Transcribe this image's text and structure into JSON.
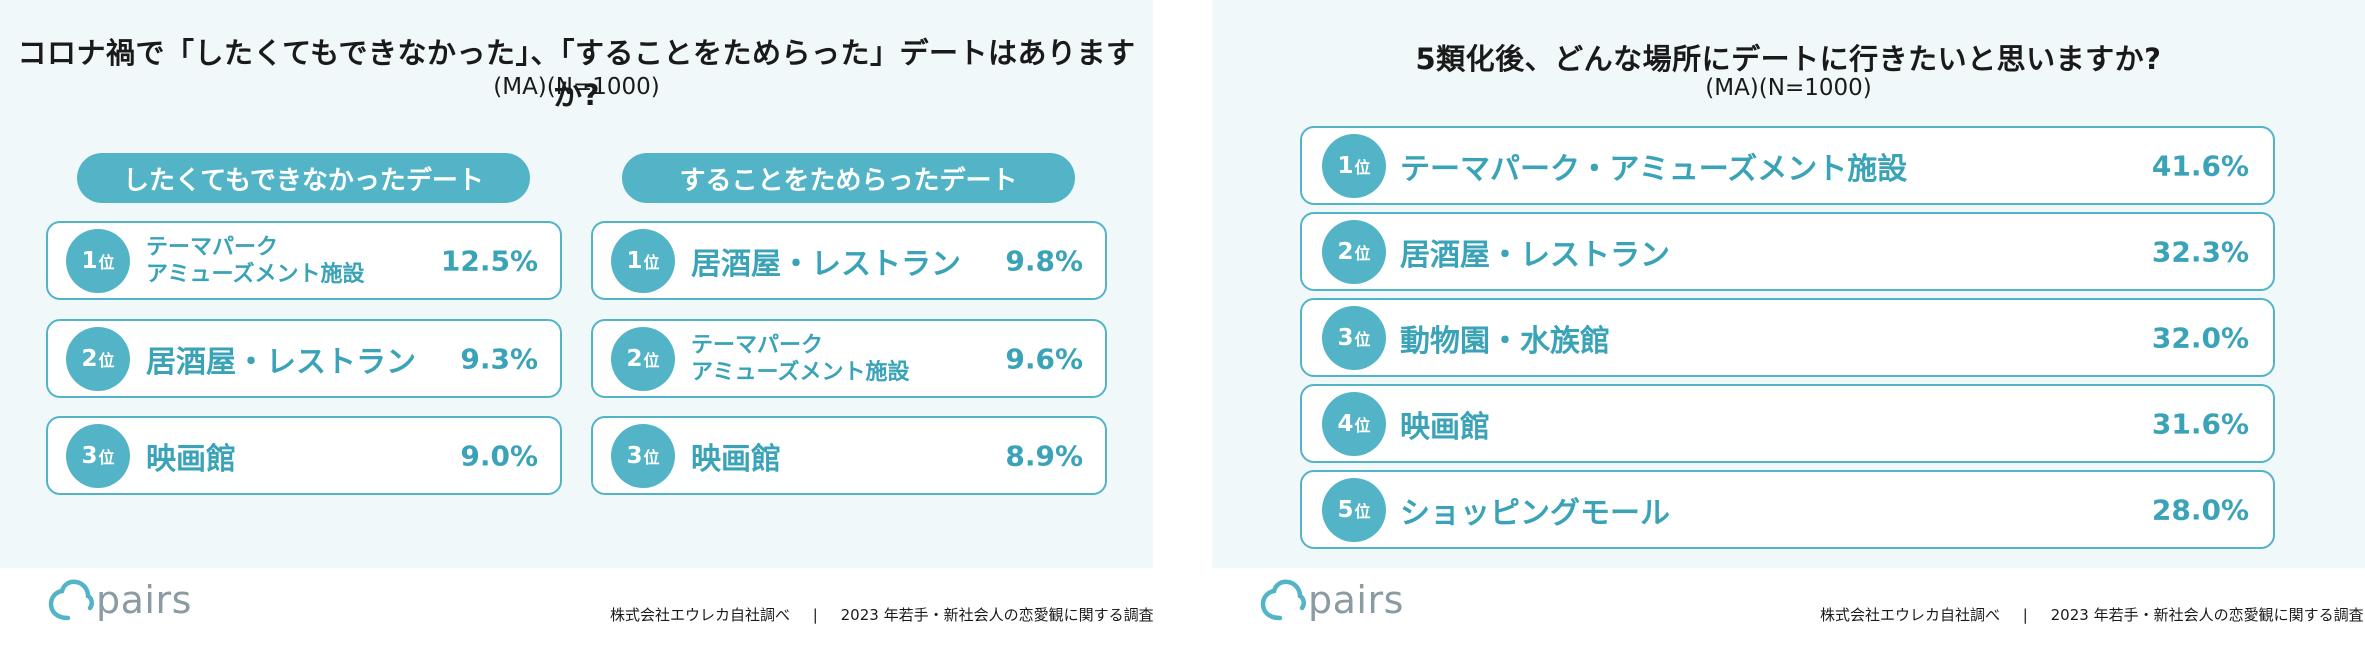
{
  "brand": {
    "logo_text": "pairs",
    "logo_color": "#52b4c6",
    "footer_left": "株式会社エウレカ自社調べ",
    "footer_sep": "|",
    "footer_right": "2023 年若手・新社会人の恋愛観に関する調査"
  },
  "colors": {
    "accent": "#52b4c6",
    "value_text": "#3aa3b7",
    "panel_bg": "#f1f8fa"
  },
  "chart_data": [
    {
      "type": "table",
      "title": "コロナ禍で「したくてもできなかった」、「することをためらった」デートはありますか?",
      "subtitle": "(MA)(N=1000)",
      "groups": [
        {
          "header": "したくてもできなかったデート",
          "rows": [
            {
              "rank_num": "1",
              "rank_unit": "位",
              "lines": [
                "テーマパーク",
                "アミューズメント施設"
              ],
              "value": 12.5,
              "value_label": "12.5%"
            },
            {
              "rank_num": "2",
              "rank_unit": "位",
              "lines": [
                "居酒屋・レストラン"
              ],
              "value": 9.3,
              "value_label": "9.3%"
            },
            {
              "rank_num": "3",
              "rank_unit": "位",
              "lines": [
                "映画館"
              ],
              "value": 9.0,
              "value_label": "9.0%"
            }
          ]
        },
        {
          "header": "することをためらったデート",
          "rows": [
            {
              "rank_num": "1",
              "rank_unit": "位",
              "lines": [
                "居酒屋・レストラン"
              ],
              "value": 9.8,
              "value_label": "9.8%"
            },
            {
              "rank_num": "2",
              "rank_unit": "位",
              "lines": [
                "テーマパーク",
                "アミューズメント施設"
              ],
              "value": 9.6,
              "value_label": "9.6%"
            },
            {
              "rank_num": "3",
              "rank_unit": "位",
              "lines": [
                "映画館"
              ],
              "value": 8.9,
              "value_label": "8.9%"
            }
          ]
        }
      ]
    },
    {
      "type": "table",
      "title": "5類化後、どんな場所にデートに行きたいと思いますか?",
      "subtitle": "(MA)(N=1000)",
      "rows": [
        {
          "rank_num": "1",
          "rank_unit": "位",
          "label": "テーマパーク・アミューズメント施設",
          "value": 41.6,
          "value_label": "41.6%"
        },
        {
          "rank_num": "2",
          "rank_unit": "位",
          "label": "居酒屋・レストラン",
          "value": 32.3,
          "value_label": "32.3%"
        },
        {
          "rank_num": "3",
          "rank_unit": "位",
          "label": "動物園・水族館",
          "value": 32.0,
          "value_label": "32.0%"
        },
        {
          "rank_num": "4",
          "rank_unit": "位",
          "label": "映画館",
          "value": 31.6,
          "value_label": "31.6%"
        },
        {
          "rank_num": "5",
          "rank_unit": "位",
          "label": "ショッピングモール",
          "value": 28.0,
          "value_label": "28.0%"
        }
      ]
    }
  ]
}
